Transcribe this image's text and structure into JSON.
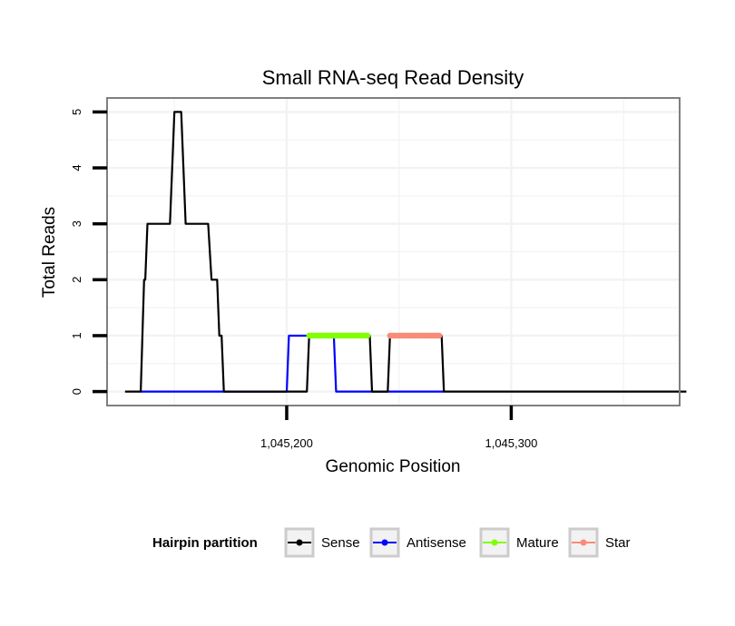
{
  "chart_data": {
    "type": "line",
    "title": "Small RNA-seq Read Density",
    "xlabel": "Genomic Position",
    "ylabel": "Total Reads",
    "xlim": [
      1045120,
      1045375
    ],
    "ylim": [
      -0.25,
      5.25
    ],
    "x_ticks": [
      1045200,
      1045300
    ],
    "x_tick_labels": [
      "1,045,200",
      "1,045,300"
    ],
    "y_ticks": [
      0,
      1,
      2,
      3,
      4,
      5
    ],
    "y_tick_labels": [
      "0",
      "1",
      "2",
      "3",
      "4",
      "5"
    ],
    "grid": true,
    "legend": {
      "title": "Hairpin partition",
      "position": "bottom",
      "entries": [
        "Sense",
        "Antisense",
        "Mature",
        "Star"
      ]
    },
    "series": [
      {
        "name": "Sense",
        "color": "#000000",
        "style": "line",
        "points": [
          [
            1045128,
            0
          ],
          [
            1045135,
            0
          ],
          [
            1045136.5,
            2
          ],
          [
            1045137,
            2
          ],
          [
            1045138,
            3
          ],
          [
            1045148,
            3
          ],
          [
            1045150,
            5
          ],
          [
            1045153,
            5
          ],
          [
            1045155,
            3
          ],
          [
            1045165,
            3
          ],
          [
            1045166.5,
            2
          ],
          [
            1045169,
            2
          ],
          [
            1045170,
            1
          ],
          [
            1045171,
            1
          ],
          [
            1045172,
            0
          ],
          [
            1045209,
            0
          ],
          [
            1045210,
            1
          ],
          [
            1045237,
            1
          ],
          [
            1045238,
            0
          ],
          [
            1045245,
            0
          ],
          [
            1045246,
            1
          ],
          [
            1045269,
            1
          ],
          [
            1045270,
            0
          ],
          [
            1045378,
            0
          ]
        ]
      },
      {
        "name": "Antisense",
        "color": "#0000ff",
        "style": "line",
        "points": [
          [
            1045135,
            0
          ],
          [
            1045200,
            0
          ],
          [
            1045201,
            1
          ],
          [
            1045221,
            1
          ],
          [
            1045222,
            0
          ],
          [
            1045270,
            0
          ]
        ]
      },
      {
        "name": "Mature",
        "color": "#80ff00",
        "style": "points",
        "x_range": [
          1045210,
          1045236
        ],
        "value": 1
      },
      {
        "name": "Star",
        "color": "#f98b78",
        "style": "points",
        "x_range": [
          1045246,
          1045268
        ],
        "value": 1
      }
    ]
  }
}
